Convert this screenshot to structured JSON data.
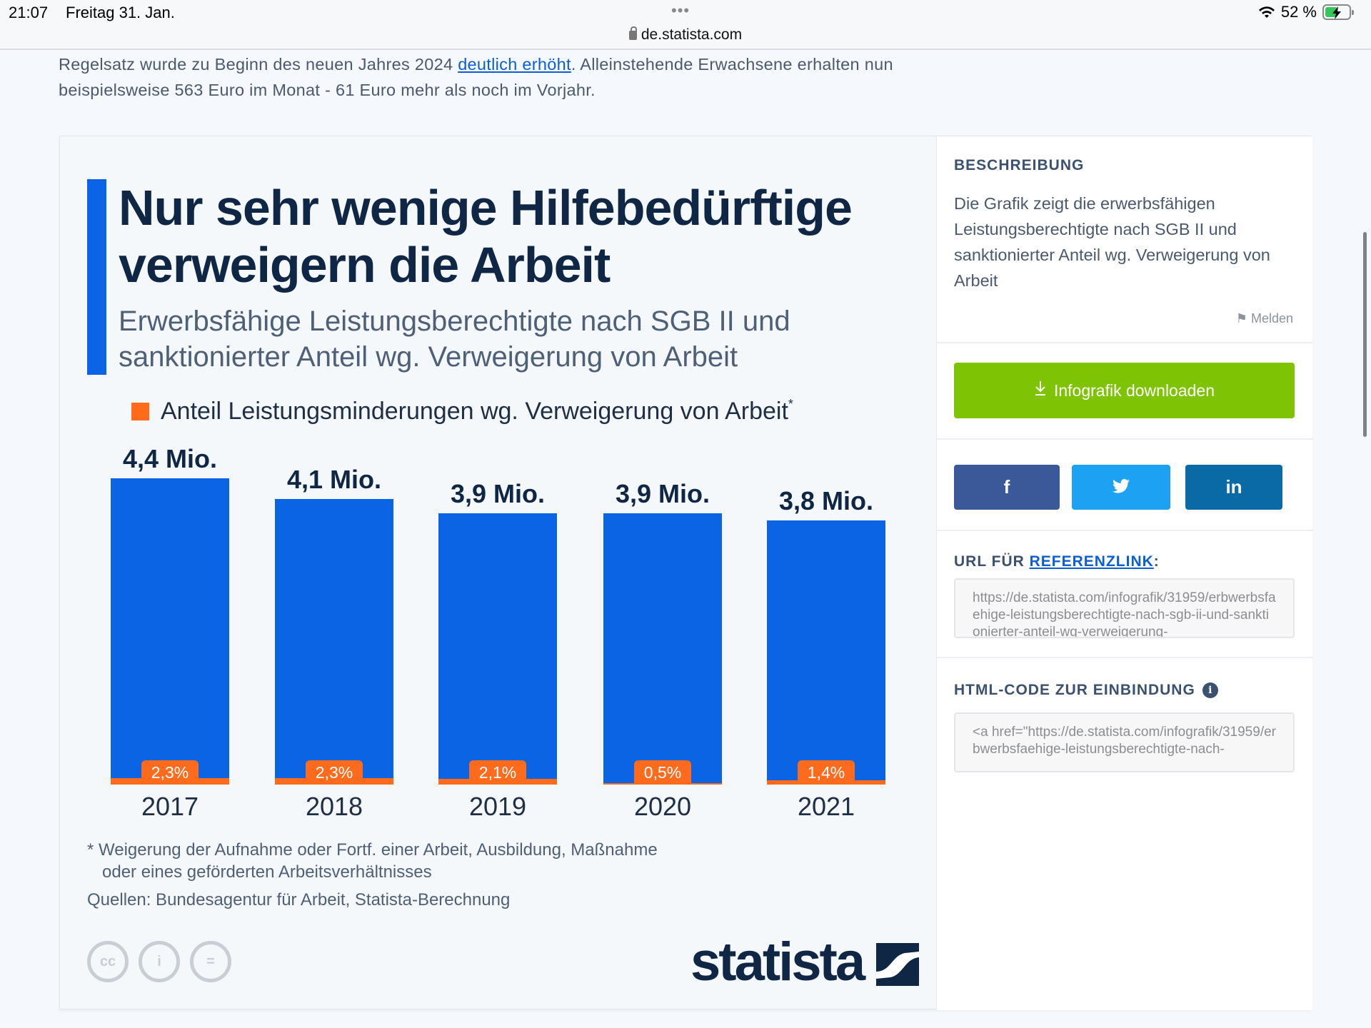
{
  "status_bar": {
    "time": "21:07",
    "date": "Freitag 31. Jan.",
    "url": "de.statista.com",
    "battery_percent": "52 %",
    "battery_level": 0.52
  },
  "intro": {
    "line_prefix": "Regelsatz wurde zu Beginn des neuen Jahres 2024 ",
    "link_text": "deutlich erhöht",
    "line_suffix": ". Alleinstehende Erwachsene erhalten nun beispielsweise 563 Euro im Monat - 61 Euro mehr als noch im Vorjahr."
  },
  "infographic": {
    "title": "Nur sehr wenige Hilfebedürftige verweigern die Arbeit",
    "subtitle": "Erwerbsfähige Leistungsberechtigte nach SGB II und sanktionierter Anteil wg. Verweigerung von Arbeit",
    "legend_label": "Anteil Leistungsminderungen wg. Verweigerung von Arbeit",
    "legend_mark": "*",
    "footnote_line1": "* Weigerung der Aufnahme oder Fortf. einer Arbeit, Ausbildung, Maßnahme",
    "footnote_line2": "oder eines geförderten Arbeitsverhältnisses",
    "source": "Quellen: Bundesagentur für Arbeit, Statista-Berechnung",
    "license_icons": [
      "cc",
      "by",
      "nd"
    ],
    "license_labels": [
      "cc",
      "i",
      "="
    ],
    "logo_text": "statista",
    "colors": {
      "bar": "#0a64e4",
      "share": "#ff6b1d",
      "accent": "#0b63e6",
      "title": "#0f2745"
    }
  },
  "chart_data": {
    "type": "bar",
    "title": "Nur sehr wenige Hilfebedürftige verweigern die Arbeit",
    "subtitle": "Erwerbsfähige Leistungsberechtigte nach SGB II und sanktionierter Anteil wg. Verweigerung von Arbeit",
    "categories": [
      "2017",
      "2018",
      "2019",
      "2020",
      "2021"
    ],
    "series": [
      {
        "name": "Erwerbsfähige Leistungsberechtigte (Mio.)",
        "values": [
          4.4,
          4.1,
          3.9,
          3.9,
          3.8
        ],
        "labels": [
          "4,4 Mio.",
          "4,1 Mio.",
          "3,9 Mio.",
          "3,9 Mio.",
          "3,8 Mio."
        ]
      },
      {
        "name": "Anteil Leistungsminderungen wg. Verweigerung von Arbeit (%)",
        "values": [
          2.3,
          2.3,
          2.1,
          0.5,
          1.4
        ],
        "labels": [
          "2,3%",
          "2,3%",
          "2,1%",
          "0,5%",
          "1,4%"
        ]
      }
    ],
    "xlabel": "",
    "ylabel": "",
    "ylim": [
      0,
      4.4
    ],
    "grid": false,
    "legend": "top-left"
  },
  "sidebar": {
    "description_heading": "BESCHREIBUNG",
    "description": "Die Grafik zeigt die erwerbsfähigen Leistungsberechtigte nach SGB II und sanktionierter Anteil wg. Verweigerung von Arbeit",
    "report_label": "Melden",
    "download_label": "Infografik downloaden",
    "social": [
      {
        "name": "facebook",
        "glyph": "f",
        "color": "#3b5998"
      },
      {
        "name": "twitter",
        "glyph": "🐦",
        "color": "#1da1f2"
      },
      {
        "name": "linkedin",
        "glyph": "in",
        "color": "#0a6aa6"
      }
    ],
    "url_heading_prefix": "URL FÜR ",
    "url_heading_link": "REFERENZLINK",
    "url_heading_suffix": ":",
    "url_value": "https://de.statista.com/infografik/31959/erbwerbsfaehige-leistungsberechtigte-nach-sgb-ii-und-sanktionierter-anteil-wg-verweigerung-",
    "embed_heading": "HTML-CODE ZUR EINBINDUNG",
    "embed_value": "<a href=\"https://de.statista.com/infografik/31959/erbwerbsfaehige-leistungsberechtigte-nach-"
  }
}
